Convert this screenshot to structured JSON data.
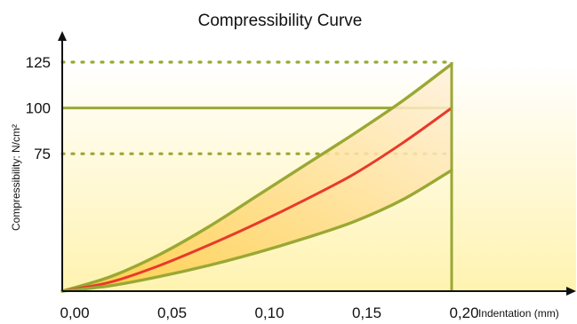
{
  "chart_data": {
    "type": "line",
    "title": "Compressibility Curve",
    "xlabel": "Indentation (mm)",
    "ylabel": "Compressibility: N/cm²",
    "x_ticks": [
      "0,00",
      "0,05",
      "0,10",
      "0,15",
      "0,20"
    ],
    "y_ticks": [
      "75",
      "100",
      "125"
    ],
    "y_tick_values": [
      75,
      100,
      125
    ],
    "xlim": [
      0,
      0.2
    ],
    "ylim": [
      0,
      125
    ],
    "series": [
      {
        "role": "upper",
        "color": "#99a833",
        "x": [
          0,
          0.025,
          0.05,
          0.075,
          0.1,
          0.125,
          0.15,
          0.175,
          0.2
        ],
        "y": [
          0,
          8,
          20,
          35,
          52,
          69,
          86,
          104,
          124
        ]
      },
      {
        "role": "nominal",
        "color": "#e8392a",
        "x": [
          0,
          0.025,
          0.05,
          0.075,
          0.1,
          0.125,
          0.15,
          0.175,
          0.2
        ],
        "y": [
          0,
          5,
          14,
          25,
          37,
          50,
          64,
          81,
          100
        ]
      },
      {
        "role": "lower",
        "color": "#99a833",
        "x": [
          0,
          0.025,
          0.05,
          0.075,
          0.1,
          0.125,
          0.15,
          0.175,
          0.2
        ],
        "y": [
          0,
          3,
          8,
          14,
          21,
          29,
          38,
          50,
          66
        ]
      }
    ],
    "reference_lines": [
      {
        "y": 125,
        "style": "dotted",
        "color": "#99a833"
      },
      {
        "y": 100,
        "style": "solid",
        "color": "#99a833"
      },
      {
        "y": 75,
        "style": "dotted",
        "color": "#99a833"
      }
    ],
    "vertical_line": {
      "x": 0.2,
      "color": "#99a833"
    },
    "band_fill": "#ffd98a",
    "background_fill": "#fff3b0"
  }
}
